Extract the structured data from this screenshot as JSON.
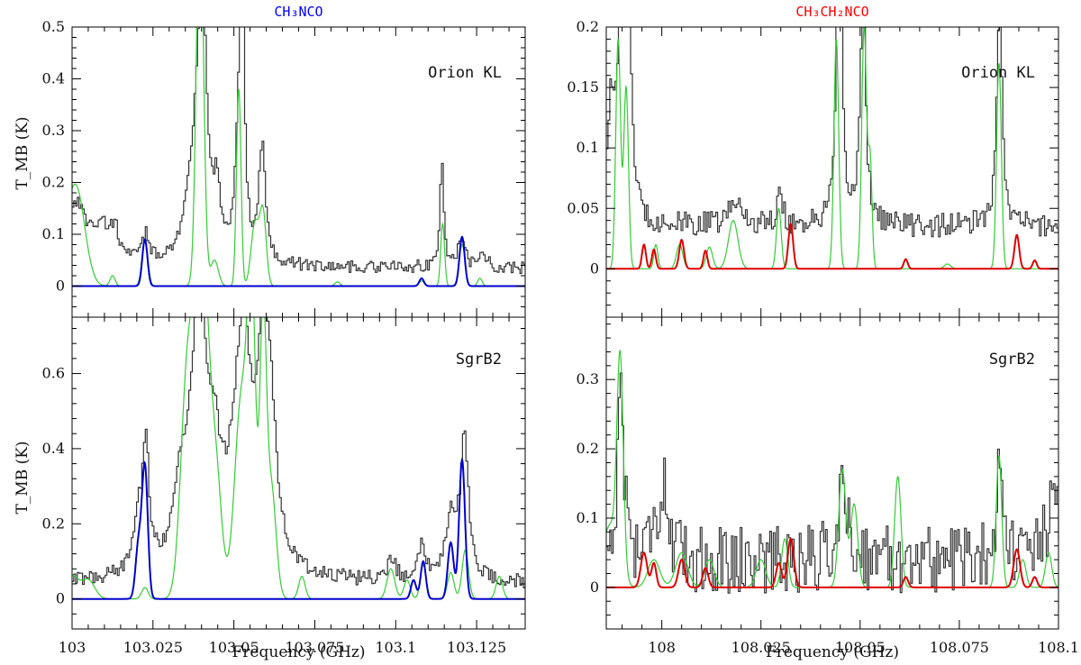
{
  "chart_data": [
    {
      "type": "line",
      "panel": "orion-ch3nco",
      "title": "CH₃NCO",
      "title_color": "#0000ff",
      "source": "Orion KL",
      "ylabel": "T_MB (K)",
      "xlim": [
        103.0,
        103.14
      ],
      "ylim": [
        -0.06,
        0.5
      ],
      "yticks": [
        0,
        0.1,
        0.2,
        0.3,
        0.4,
        0.5
      ],
      "ytick_labels": [
        "0",
        "0.1",
        "0.2",
        "0.3",
        "0.4",
        "0.5"
      ],
      "xticks": [
        103.0,
        103.025,
        103.05,
        103.075,
        103.1,
        103.125
      ],
      "baseline": 0.035,
      "noise": 0.012,
      "series": [
        {
          "name": "observed",
          "color": "#333333",
          "style": "step",
          "peaks": [
            [
              103.001,
              0.12,
              0.004
            ],
            [
              103.009,
              0.06,
              0.003
            ],
            [
              103.013,
              0.05,
              0.0015
            ],
            [
              103.0225,
              0.05,
              0.0012
            ],
            [
              103.038,
              0.2,
              0.003
            ],
            [
              103.04,
              0.5,
              0.0013
            ],
            [
              103.0445,
              0.12,
              0.0012
            ],
            [
              103.0515,
              0.3,
              0.0012
            ],
            [
              103.0525,
              0.32,
              0.0008
            ],
            [
              103.0585,
              0.23,
              0.0012
            ],
            [
              103.114,
              0.2,
              0.0007
            ],
            [
              103.12,
              0.06,
              0.0012
            ],
            [
              103.127,
              0.03,
              0.001
            ]
          ]
        },
        {
          "name": "total-model",
          "color": "#33cc33",
          "style": "smooth",
          "peaks": [
            [
              103.0,
              0.13,
              0.003
            ],
            [
              103.002,
              0.08,
              0.0025
            ],
            [
              103.0125,
              0.02,
              0.0008
            ],
            [
              103.0225,
              0.09,
              0.0009
            ],
            [
              103.0395,
              0.75,
              0.0011
            ],
            [
              103.044,
              0.05,
              0.0012
            ],
            [
              103.0515,
              0.38,
              0.0007
            ],
            [
              103.0565,
              0.12,
              0.0012
            ],
            [
              103.059,
              0.14,
              0.001
            ],
            [
              103.082,
              0.008,
              0.0008
            ],
            [
              103.108,
              0.01,
              0.0008
            ],
            [
              103.1145,
              0.12,
              0.0006
            ],
            [
              103.1205,
              0.08,
              0.0009
            ],
            [
              103.126,
              0.015,
              0.0007
            ]
          ]
        },
        {
          "name": "ch3nco-model",
          "color": "#0000cc",
          "style": "smooth",
          "peaks": [
            [
              103.0225,
              0.09,
              0.0008
            ],
            [
              103.108,
              0.015,
              0.0007
            ],
            [
              103.1205,
              0.095,
              0.0008
            ]
          ]
        }
      ]
    },
    {
      "type": "line",
      "panel": "sgrb2-ch3nco",
      "source": "SgrB2",
      "ylabel": "T_MB (K)",
      "xlabel": "Frequency (GHz)",
      "xlim": [
        103.0,
        103.14
      ],
      "ylim": [
        -0.08,
        0.75
      ],
      "yticks": [
        0,
        0.2,
        0.4,
        0.6
      ],
      "ytick_labels": [
        "0",
        "0.2",
        "0.4",
        "0.6"
      ],
      "xticks": [
        103.0,
        103.025,
        103.05,
        103.075,
        103.1,
        103.125
      ],
      "xtick_labels": [
        "103",
        "103.025",
        "103.05",
        "103.075",
        "103.1",
        "103.125"
      ],
      "baseline": 0.04,
      "noise": 0.02,
      "series": [
        {
          "name": "observed",
          "color": "#333333",
          "style": "step",
          "peaks": [
            [
              103.02,
              0.14,
              0.0015
            ],
            [
              103.0225,
              0.34,
              0.0012
            ],
            [
              103.033,
              0.15,
              0.002
            ],
            [
              103.039,
              0.7,
              0.0035
            ],
            [
              103.044,
              0.15,
              0.002
            ],
            [
              103.0525,
              0.62,
              0.0035
            ],
            [
              103.059,
              0.55,
              0.002
            ],
            [
              103.0615,
              0.25,
              0.002
            ],
            [
              103.0985,
              0.06,
              0.0015
            ],
            [
              103.108,
              0.1,
              0.0012
            ],
            [
              103.117,
              0.16,
              0.002
            ],
            [
              103.121,
              0.37,
              0.0015
            ]
          ]
        },
        {
          "name": "total-model",
          "color": "#33cc33",
          "style": "smooth",
          "peaks": [
            [
              103.0,
              0.06,
              0.002
            ],
            [
              103.005,
              0.05,
              0.002
            ],
            [
              103.0225,
              0.03,
              0.001
            ],
            [
              103.0355,
              0.55,
              0.002
            ],
            [
              103.04,
              0.95,
              0.0022
            ],
            [
              103.0445,
              0.3,
              0.0018
            ],
            [
              103.0525,
              0.55,
              0.0022
            ],
            [
              103.0555,
              0.72,
              0.0012
            ],
            [
              103.059,
              0.72,
              0.001
            ],
            [
              103.0615,
              0.3,
              0.0015
            ],
            [
              103.071,
              0.06,
              0.001
            ],
            [
              103.0985,
              0.08,
              0.0012
            ],
            [
              103.1035,
              0.05,
              0.001
            ],
            [
              103.1085,
              0.09,
              0.0009
            ],
            [
              103.117,
              0.07,
              0.001
            ],
            [
              103.1215,
              0.13,
              0.001
            ],
            [
              103.132,
              0.06,
              0.001
            ]
          ]
        },
        {
          "name": "ch3nco-model",
          "color": "#0000cc",
          "style": "smooth",
          "peaks": [
            [
              103.0205,
              0.14,
              0.0009
            ],
            [
              103.0225,
              0.35,
              0.0009
            ],
            [
              103.1055,
              0.05,
              0.0008
            ],
            [
              103.1085,
              0.1,
              0.0008
            ],
            [
              103.117,
              0.15,
              0.0009
            ],
            [
              103.1205,
              0.37,
              0.0009
            ]
          ]
        }
      ]
    },
    {
      "type": "line",
      "panel": "orion-ch3ch2nco",
      "title": "CH₃CH₂NCO",
      "title_color": "#ff0000",
      "source": "Orion KL",
      "xlim": [
        107.986,
        108.1
      ],
      "ylim": [
        -0.04,
        0.2
      ],
      "yticks": [
        0,
        0.05,
        0.1,
        0.15,
        0.2
      ],
      "ytick_labels": [
        "0",
        "0.05",
        "0.1",
        "0.15",
        "0.2"
      ],
      "xticks": [
        108.0,
        108.025,
        108.05,
        108.075,
        108.1
      ],
      "baseline": 0.035,
      "noise": 0.01,
      "series": [
        {
          "name": "observed",
          "color": "#333333",
          "style": "step",
          "peaks": [
            [
              107.987,
              0.1,
              0.001
            ],
            [
              107.9895,
              0.18,
              0.0009
            ],
            [
              107.9915,
              0.16,
              0.0009
            ],
            [
              108.0185,
              0.02,
              0.002
            ],
            [
              108.0295,
              0.03,
              0.0008
            ],
            [
              108.0445,
              0.3,
              0.0007
            ],
            [
              108.0505,
              0.2,
              0.0008
            ],
            [
              108.085,
              0.19,
              0.0008
            ]
          ]
        },
        {
          "name": "total-model",
          "color": "#33cc33",
          "style": "smooth",
          "peaks": [
            [
              107.989,
              0.19,
              0.0006
            ],
            [
              107.991,
              0.15,
              0.0006
            ],
            [
              107.9985,
              0.02,
              0.0005
            ],
            [
              108.0045,
              0.02,
              0.0008
            ],
            [
              108.012,
              0.018,
              0.0008
            ],
            [
              108.018,
              0.04,
              0.0012
            ],
            [
              108.0295,
              0.05,
              0.0006
            ],
            [
              108.044,
              0.19,
              0.0006
            ],
            [
              108.051,
              0.2,
              0.0006
            ],
            [
              108.0525,
              0.09,
              0.0005
            ],
            [
              108.085,
              0.17,
              0.0006
            ],
            [
              108.072,
              0.004,
              0.0008
            ]
          ]
        },
        {
          "name": "ch3ch2nco-model",
          "color": "#dd0000",
          "style": "smooth",
          "peaks": [
            [
              107.9955,
              0.02,
              0.0005
            ],
            [
              107.998,
              0.016,
              0.0005
            ],
            [
              108.005,
              0.024,
              0.0006
            ],
            [
              108.011,
              0.015,
              0.0005
            ],
            [
              108.0325,
              0.037,
              0.0006
            ],
            [
              108.0615,
              0.008,
              0.0005
            ],
            [
              108.0895,
              0.028,
              0.0006
            ],
            [
              108.094,
              0.007,
              0.0005
            ]
          ]
        }
      ]
    },
    {
      "type": "line",
      "panel": "sgrb2-ch3ch2nco",
      "source": "SgrB2",
      "xlabel": "Frequency (GHz)",
      "xlim": [
        107.986,
        108.1
      ],
      "ylim": [
        -0.06,
        0.39
      ],
      "yticks": [
        0,
        0.1,
        0.2,
        0.3
      ],
      "ytick_labels": [
        "0",
        "0.1",
        "0.2",
        "0.3"
      ],
      "xticks": [
        108.0,
        108.025,
        108.05,
        108.075,
        108.1
      ],
      "xtick_labels": [
        "108",
        "108.025",
        "108.05",
        "108.075",
        "108.1"
      ],
      "baseline": 0.04,
      "noise": 0.05,
      "series": [
        {
          "name": "observed",
          "color": "#333333",
          "style": "step",
          "peaks": [
            [
              107.9895,
              0.26,
              0.0009
            ],
            [
              107.998,
              0.07,
              0.0015
            ],
            [
              108.0005,
              0.13,
              0.0005
            ],
            [
              108.0455,
              0.1,
              0.0015
            ],
            [
              108.085,
              0.18,
              0.0008
            ],
            [
              108.099,
              0.09,
              0.002
            ]
          ]
        },
        {
          "name": "total-model",
          "color": "#33cc33",
          "style": "smooth",
          "peaks": [
            [
              107.987,
              0.09,
              0.002
            ],
            [
              107.9895,
              0.3,
              0.0008
            ],
            [
              107.998,
              0.04,
              0.0015
            ],
            [
              108.005,
              0.05,
              0.0015
            ],
            [
              108.012,
              0.04,
              0.0012
            ],
            [
              108.025,
              0.04,
              0.0012
            ],
            [
              108.031,
              0.07,
              0.0008
            ],
            [
              108.0455,
              0.17,
              0.0009
            ],
            [
              108.0485,
              0.12,
              0.0009
            ],
            [
              108.0595,
              0.16,
              0.0008
            ],
            [
              108.085,
              0.19,
              0.0007
            ],
            [
              108.091,
              0.04,
              0.0008
            ],
            [
              108.0975,
              0.05,
              0.0008
            ]
          ]
        },
        {
          "name": "ch3ch2nco-model",
          "color": "#dd0000",
          "style": "smooth",
          "peaks": [
            [
              107.9955,
              0.05,
              0.0008
            ],
            [
              107.998,
              0.035,
              0.0006
            ],
            [
              108.005,
              0.04,
              0.0008
            ],
            [
              108.011,
              0.028,
              0.0007
            ],
            [
              108.0295,
              0.035,
              0.0007
            ],
            [
              108.0325,
              0.07,
              0.0008
            ],
            [
              108.0615,
              0.015,
              0.0006
            ],
            [
              108.0895,
              0.055,
              0.0008
            ],
            [
              108.094,
              0.015,
              0.0006
            ]
          ]
        }
      ]
    }
  ]
}
